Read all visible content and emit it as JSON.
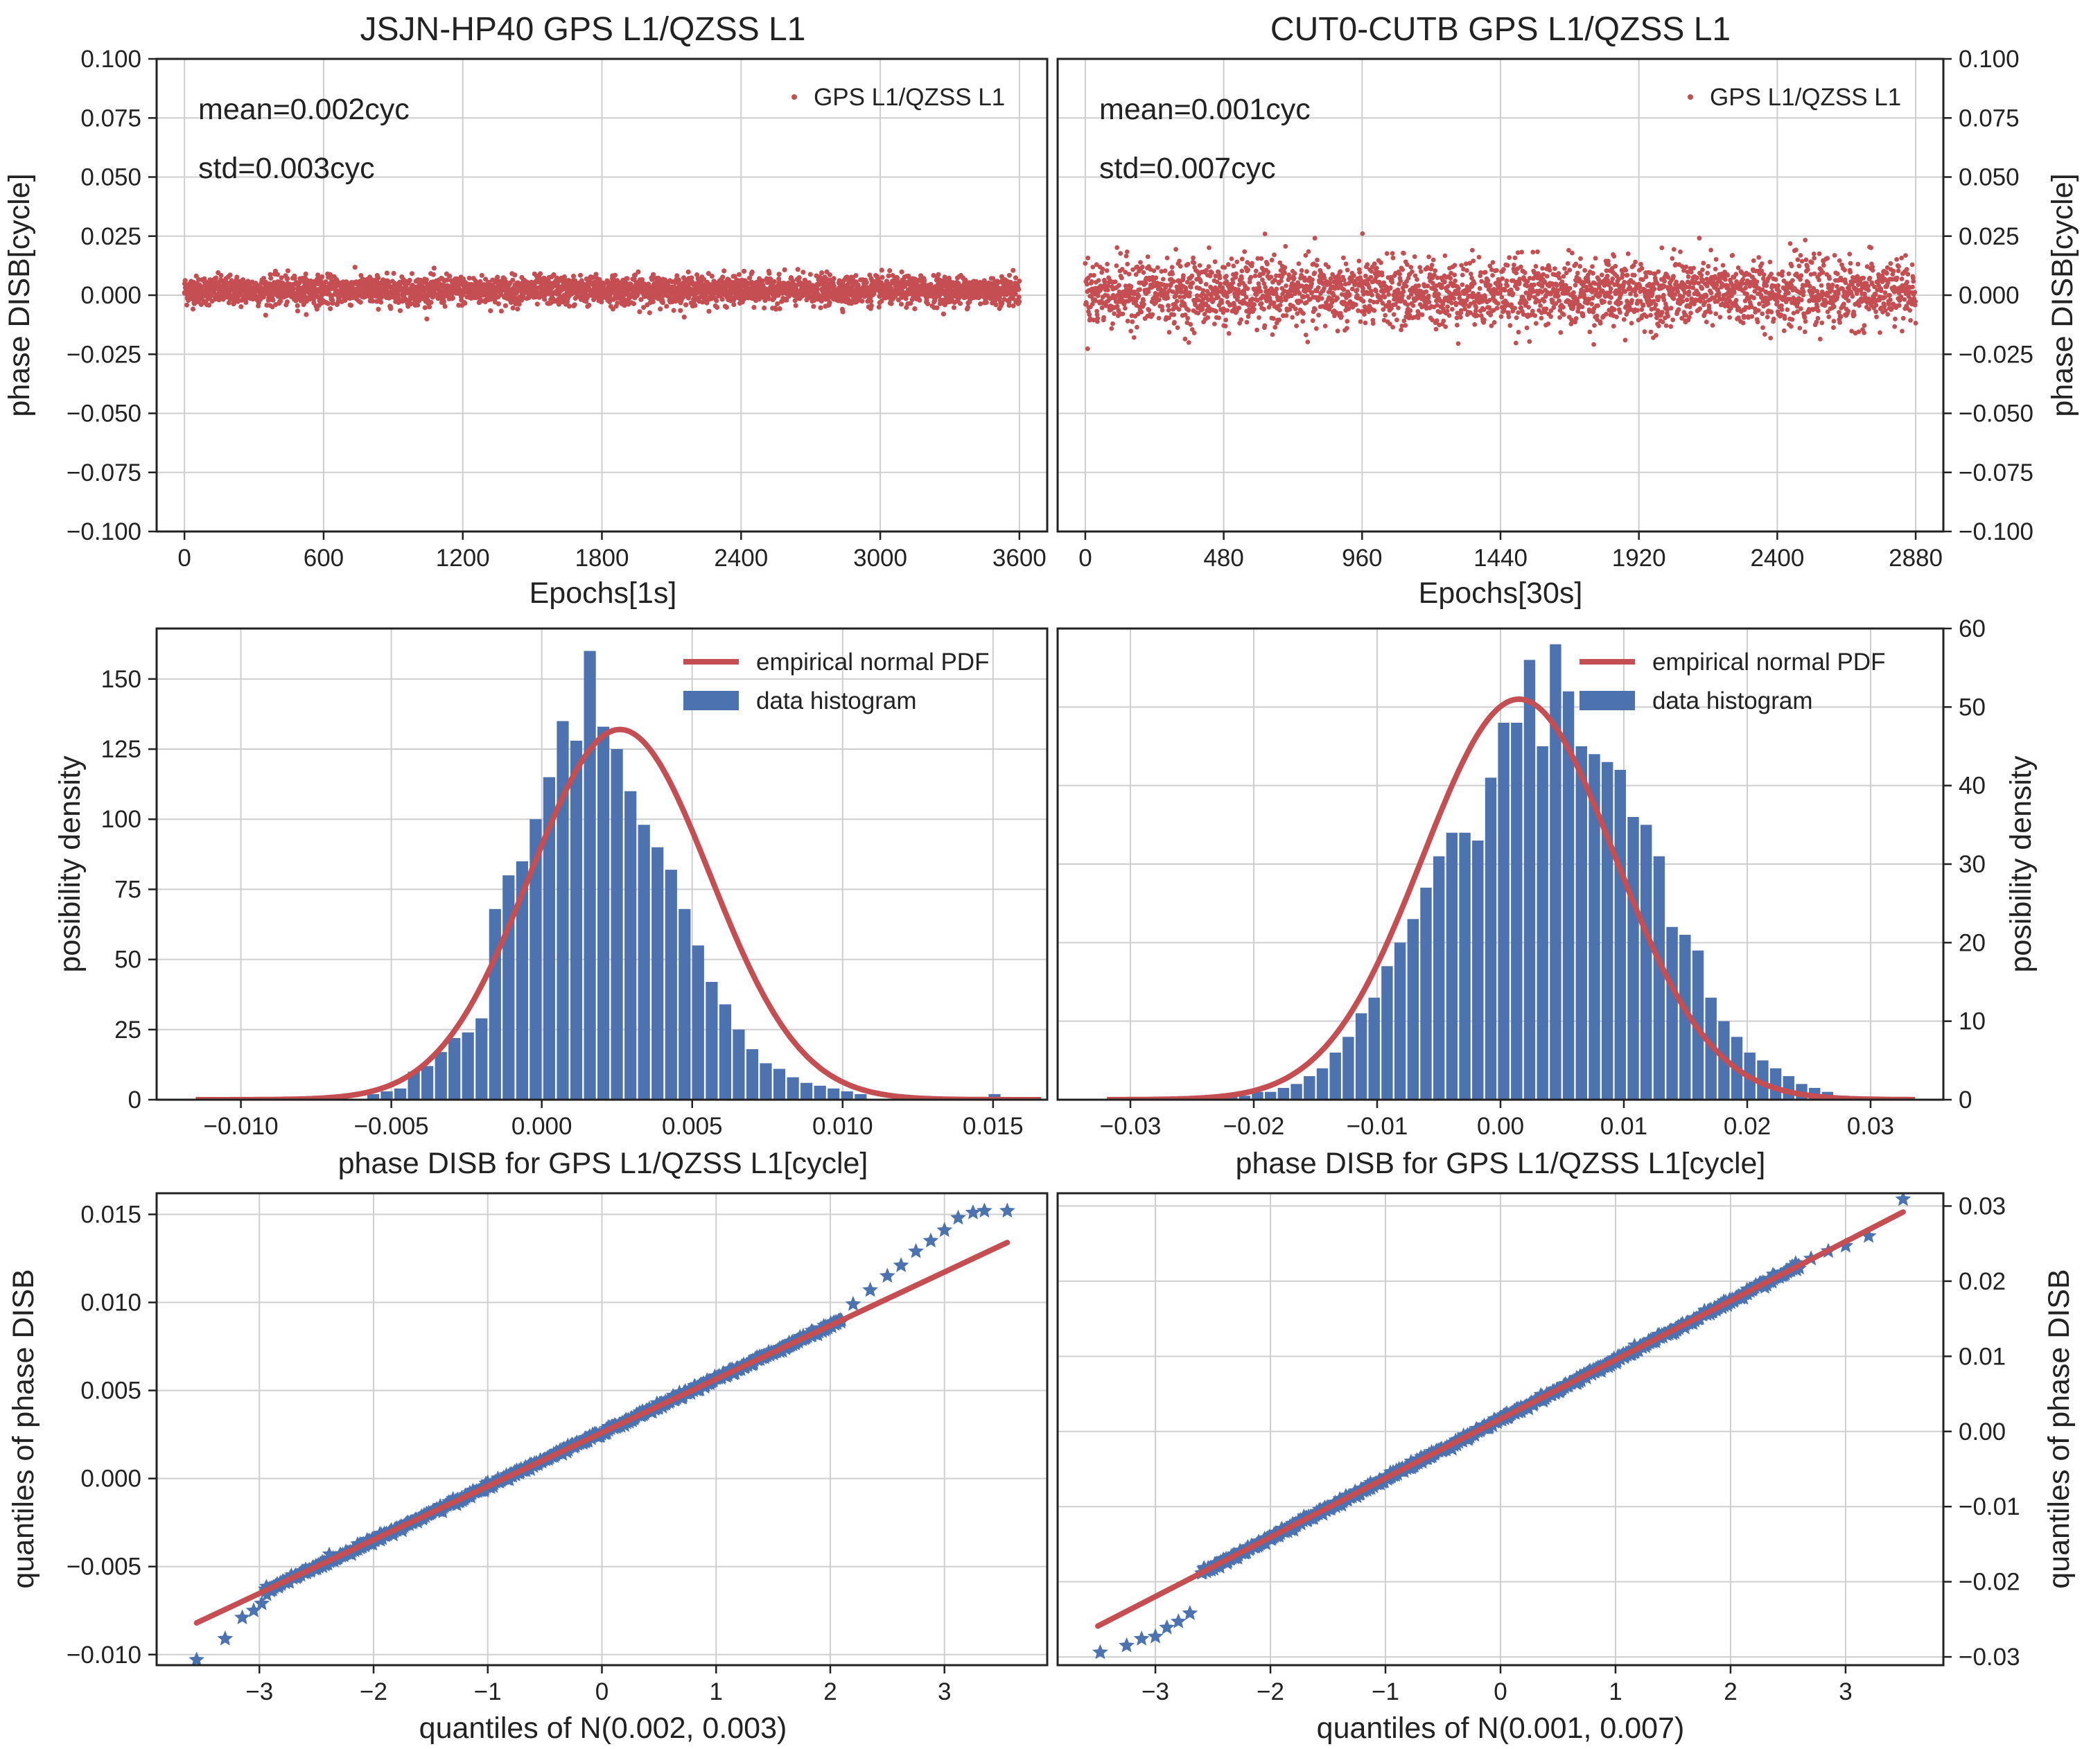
{
  "chart_data": [
    {
      "id": "ts-left",
      "type": "scatter",
      "title": "JSJN-HP40 GPS L1/QZSS L1",
      "xlabel": "Epochs[1s]",
      "ylabel": "phase DISB[cycle]",
      "xlim": [
        -120,
        3720
      ],
      "ylim": [
        -0.1,
        0.1
      ],
      "xticks": [
        0,
        600,
        1200,
        1800,
        2400,
        3000,
        3600
      ],
      "xtick_labels": [
        "0",
        "600",
        "1200",
        "1800",
        "2400",
        "3000",
        "3600"
      ],
      "yticks": [
        -0.1,
        -0.075,
        -0.05,
        -0.025,
        0.0,
        0.025,
        0.05,
        0.075,
        0.1
      ],
      "ytick_labels": [
        "−0.100",
        "−0.075",
        "−0.050",
        "−0.025",
        "0.000",
        "0.025",
        "0.050",
        "0.075",
        "0.100"
      ],
      "y_axis_side": "left",
      "legend": [
        "GPS L1/QZSS L1"
      ],
      "legend_position": "top-right",
      "annotations": [
        "mean=0.002cyc",
        "std=0.003cyc"
      ],
      "series": [
        {
          "name": "GPS L1/QZSS L1",
          "x_range": [
            0,
            3600
          ],
          "n_points": 3600,
          "mean": 0.002,
          "std": 0.003,
          "color": "#c44e52"
        }
      ]
    },
    {
      "id": "ts-right",
      "type": "scatter",
      "title": "CUT0-CUTB GPS L1/QZSS L1",
      "xlabel": "Epochs[30s]",
      "ylabel": "phase DISB[cycle]",
      "xlim": [
        -96,
        2976
      ],
      "ylim": [
        -0.1,
        0.1
      ],
      "xticks": [
        0,
        480,
        960,
        1440,
        1920,
        2400,
        2880
      ],
      "xtick_labels": [
        "0",
        "480",
        "960",
        "1440",
        "1920",
        "2400",
        "2880"
      ],
      "yticks": [
        -0.1,
        -0.075,
        -0.05,
        -0.025,
        0.0,
        0.025,
        0.05,
        0.075,
        0.1
      ],
      "ytick_labels": [
        "−0.100",
        "−0.075",
        "−0.050",
        "−0.025",
        "0.000",
        "0.025",
        "0.050",
        "0.075",
        "0.100"
      ],
      "y_axis_side": "right",
      "legend": [
        "GPS L1/QZSS L1"
      ],
      "legend_position": "top-right",
      "annotations": [
        "mean=0.001cyc",
        "std=0.007cyc"
      ],
      "series": [
        {
          "name": "GPS L1/QZSS L1",
          "x_range": [
            0,
            2880
          ],
          "n_points": 2880,
          "mean": 0.001,
          "std": 0.007,
          "color": "#c44e52"
        }
      ]
    },
    {
      "id": "hist-left",
      "type": "bar",
      "xlabel": "phase DISB for GPS L1/QZSS L1[cycle]",
      "ylabel": "posibility density",
      "xlim": [
        -0.0128,
        0.0168
      ],
      "ylim": [
        0,
        168
      ],
      "xticks": [
        -0.01,
        -0.005,
        0.0,
        0.005,
        0.01,
        0.015
      ],
      "xtick_labels": [
        "−0.010",
        "−0.005",
        "0.000",
        "0.005",
        "0.010",
        "0.015"
      ],
      "yticks": [
        0,
        25,
        50,
        75,
        100,
        125,
        150
      ],
      "ytick_labels": [
        "0",
        "25",
        "50",
        "75",
        "100",
        "125",
        "150"
      ],
      "y_axis_side": "left",
      "legend": [
        "empirical normal PDF",
        "data histogram"
      ],
      "legend_position": "top-right",
      "bins": {
        "start": -0.0058,
        "width": 0.00045
      },
      "values": [
        2,
        3,
        4,
        10,
        12,
        17,
        22,
        24,
        29,
        68,
        80,
        85,
        100,
        115,
        135,
        128,
        160,
        133,
        125,
        110,
        98,
        90,
        82,
        68,
        55,
        42,
        34,
        25,
        18,
        13,
        11,
        8,
        6,
        5,
        4,
        3,
        2
      ],
      "outlier_bars": [
        {
          "x": 0.01505,
          "value": 2
        }
      ],
      "pdf": {
        "mean": 0.0026,
        "std": 0.003,
        "x_range": [
          -0.0115,
          0.0166
        ],
        "peak": 132,
        "color": "#c44e52"
      },
      "bar_color": "#4c72b0"
    },
    {
      "id": "hist-right",
      "type": "bar",
      "xlabel": "phase DISB for GPS L1/QZSS L1[cycle]",
      "ylabel": "posibility density",
      "xlim": [
        -0.0359,
        0.0359
      ],
      "ylim": [
        0,
        60
      ],
      "xticks": [
        -0.03,
        -0.02,
        -0.01,
        0.0,
        0.01,
        0.02,
        0.03
      ],
      "xtick_labels": [
        "−0.03",
        "−0.02",
        "−0.01",
        "0.00",
        "0.01",
        "0.02",
        "0.03"
      ],
      "yticks": [
        0,
        10,
        20,
        30,
        40,
        50,
        60
      ],
      "ytick_labels": [
        "0",
        "10",
        "20",
        "30",
        "40",
        "50",
        "60"
      ],
      "y_axis_side": "right",
      "legend": [
        "empirical normal PDF",
        "data histogram"
      ],
      "legend_position": "top-right",
      "bins": {
        "start": -0.0296,
        "width": 0.00105
      },
      "values": [
        0.3,
        0,
        0,
        0.3,
        0,
        0,
        0.5,
        0.5,
        0.5,
        1,
        1,
        1.5,
        2,
        3,
        4,
        6,
        8,
        11,
        13,
        17,
        20,
        23,
        27,
        31,
        34,
        34,
        33,
        41,
        48,
        48,
        56,
        45,
        58,
        52,
        45,
        44,
        43,
        42,
        36,
        35,
        31,
        22,
        21,
        19,
        13,
        10,
        8,
        6,
        5,
        4,
        3,
        2,
        1.5,
        1,
        0.5,
        0.4
      ],
      "pdf": {
        "mean": 0.0015,
        "std": 0.0078,
        "x_range": [
          -0.0319,
          0.0336
        ],
        "peak": 51,
        "color": "#c44e52"
      },
      "bar_color": "#4c72b0"
    },
    {
      "id": "qq-left",
      "type": "scatter",
      "xlabel": "quantiles of N(0.002, 0.003)",
      "ylabel": "quantiles of phase DISB",
      "xlim": [
        -3.9,
        3.9
      ],
      "ylim": [
        -0.0106,
        0.0162
      ],
      "xticks": [
        -3,
        -2,
        -1,
        0,
        1,
        2,
        3
      ],
      "xtick_labels": [
        "−3",
        "−2",
        "−1",
        "0",
        "1",
        "2",
        "3"
      ],
      "yticks": [
        -0.01,
        -0.005,
        0.0,
        0.005,
        0.01,
        0.015
      ],
      "ytick_labels": [
        "−0.010",
        "−0.005",
        "0.000",
        "0.005",
        "0.010",
        "0.015"
      ],
      "y_axis_side": "left",
      "fit_line": {
        "x": [
          -3.55,
          3.55
        ],
        "y": [
          -0.0082,
          0.0134
        ],
        "color": "#c44e52"
      },
      "main_points": {
        "x_range": [
          -2.95,
          2.1
        ],
        "intercept": 0.0026,
        "slope": 0.00305,
        "color": "#4c72b0"
      },
      "tail_points": [
        {
          "x": -3.55,
          "y": -0.0103
        },
        {
          "x": -3.3,
          "y": -0.0091
        },
        {
          "x": -3.15,
          "y": -0.0079
        },
        {
          "x": -3.05,
          "y": -0.0075
        },
        {
          "x": -2.98,
          "y": -0.0071
        },
        {
          "x": -2.9,
          "y": -0.0063
        },
        {
          "x": 2.2,
          "y": 0.0099
        },
        {
          "x": 2.35,
          "y": 0.0107
        },
        {
          "x": 2.5,
          "y": 0.0115
        },
        {
          "x": 2.62,
          "y": 0.0121
        },
        {
          "x": 2.75,
          "y": 0.0129
        },
        {
          "x": 2.88,
          "y": 0.0135
        },
        {
          "x": 3.0,
          "y": 0.0141
        },
        {
          "x": 3.12,
          "y": 0.0148
        },
        {
          "x": 3.25,
          "y": 0.0151
        },
        {
          "x": 3.35,
          "y": 0.0152
        },
        {
          "x": 3.55,
          "y": 0.0152
        }
      ]
    },
    {
      "id": "qq-right",
      "type": "scatter",
      "xlabel": "quantiles of N(0.001, 0.007)",
      "ylabel": "quantiles of phase DISB",
      "xlim": [
        -3.85,
        3.85
      ],
      "ylim": [
        -0.0311,
        0.0317
      ],
      "xticks": [
        -3,
        -2,
        -1,
        0,
        1,
        2,
        3
      ],
      "xtick_labels": [
        "−3",
        "−2",
        "−1",
        "0",
        "1",
        "2",
        "3"
      ],
      "yticks": [
        -0.03,
        -0.02,
        -0.01,
        0.0,
        0.01,
        0.02,
        0.03
      ],
      "ytick_labels": [
        "−0.03",
        "−0.02",
        "−0.01",
        "0.00",
        "0.01",
        "0.02",
        "0.03"
      ],
      "y_axis_side": "right",
      "fit_line": {
        "x": [
          -3.5,
          3.5
        ],
        "y": [
          -0.0259,
          0.0292
        ],
        "color": "#c44e52"
      },
      "main_points": {
        "x_range": [
          -2.6,
          2.6
        ],
        "intercept": 0.0016,
        "slope": 0.00787,
        "color": "#4c72b0"
      },
      "tail_points": [
        {
          "x": -3.48,
          "y": -0.0294
        },
        {
          "x": -3.25,
          "y": -0.0285
        },
        {
          "x": -3.12,
          "y": -0.0276
        },
        {
          "x": -3.0,
          "y": -0.0273
        },
        {
          "x": -2.9,
          "y": -0.0261
        },
        {
          "x": -2.8,
          "y": -0.0253
        },
        {
          "x": -2.7,
          "y": -0.0242
        },
        {
          "x": 2.7,
          "y": 0.023
        },
        {
          "x": 2.85,
          "y": 0.024
        },
        {
          "x": 3.0,
          "y": 0.0247
        },
        {
          "x": 3.2,
          "y": 0.026
        },
        {
          "x": 3.5,
          "y": 0.0309
        }
      ]
    }
  ]
}
